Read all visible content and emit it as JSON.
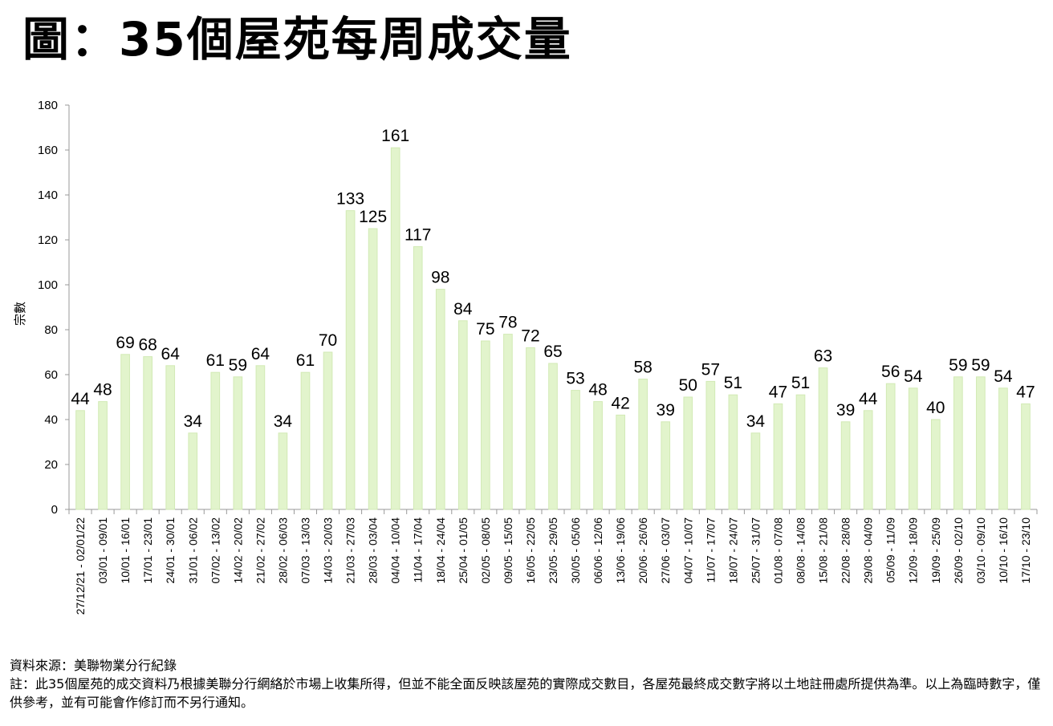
{
  "title": "圖：35個屋苑每周成交量",
  "colors": {
    "bar": "#e2f4cc",
    "bar_stroke": "#d2eab5",
    "axis": "#999999"
  },
  "chart_data": {
    "type": "bar",
    "title": "圖：35個屋苑每周成交量",
    "xlabel": "",
    "ylabel": "宗數",
    "ylim": [
      0,
      180
    ],
    "yticks": [
      0,
      20,
      40,
      60,
      80,
      100,
      120,
      140,
      160,
      180
    ],
    "grid": false,
    "categories": [
      "27/12/21 - 02/01/22",
      "03/01 - 09/01",
      "10/01 - 16/01",
      "17/01 - 23/01",
      "24/01 - 30/01",
      "31/01 - 06/02",
      "07/02 - 13/02",
      "14/02 - 20/02",
      "21/02 - 27/02",
      "28/02 - 06/03",
      "07/03 - 13/03",
      "14/03 - 20/03",
      "21/03 - 27/03",
      "28/03 - 03/04",
      "04/04 - 10/04",
      "11/04 - 17/04",
      "18/04 - 24/04",
      "25/04 - 01/05",
      "02/05 - 08/05",
      "09/05 - 15/05",
      "16/05 - 22/05",
      "23/05 - 29/05",
      "30/05 - 05/06",
      "06/06 - 12/06",
      "13/06 - 19/06",
      "20/06 - 26/06",
      "27/06 - 03/07",
      "04/07 - 10/07",
      "11/07 - 17/07",
      "18/07 - 24/07",
      "25/07 - 31/07",
      "01/08 - 07/08",
      "08/08 - 14/08",
      "15/08 - 21/08",
      "22/08 - 28/08",
      "29/08 - 04/09",
      "05/09 - 11/09",
      "12/09 - 18/09",
      "19/09 - 25/09",
      "26/09 - 02/10",
      "03/10 - 09/10",
      "10/10 - 16/10",
      "17/10 - 23/10"
    ],
    "values": [
      44,
      48,
      69,
      68,
      64,
      34,
      61,
      59,
      64,
      34,
      61,
      70,
      133,
      125,
      161,
      117,
      98,
      84,
      75,
      78,
      72,
      65,
      53,
      48,
      42,
      58,
      39,
      50,
      57,
      51,
      34,
      47,
      51,
      63,
      39,
      44,
      56,
      54,
      40,
      59,
      59,
      54,
      47
    ]
  },
  "footer": {
    "source": "資料來源：美聯物業分行紀錄",
    "note": "註：此35個屋苑的成交資料乃根據美聯分行網絡於市場上收集所得，但並不能全面反映該屋苑的實際成交數目，各屋苑最終成交數字將以土地註冊處所提供為準。以上為臨時數字，僅供參考，並有可能會作修訂而不另行通知。"
  }
}
